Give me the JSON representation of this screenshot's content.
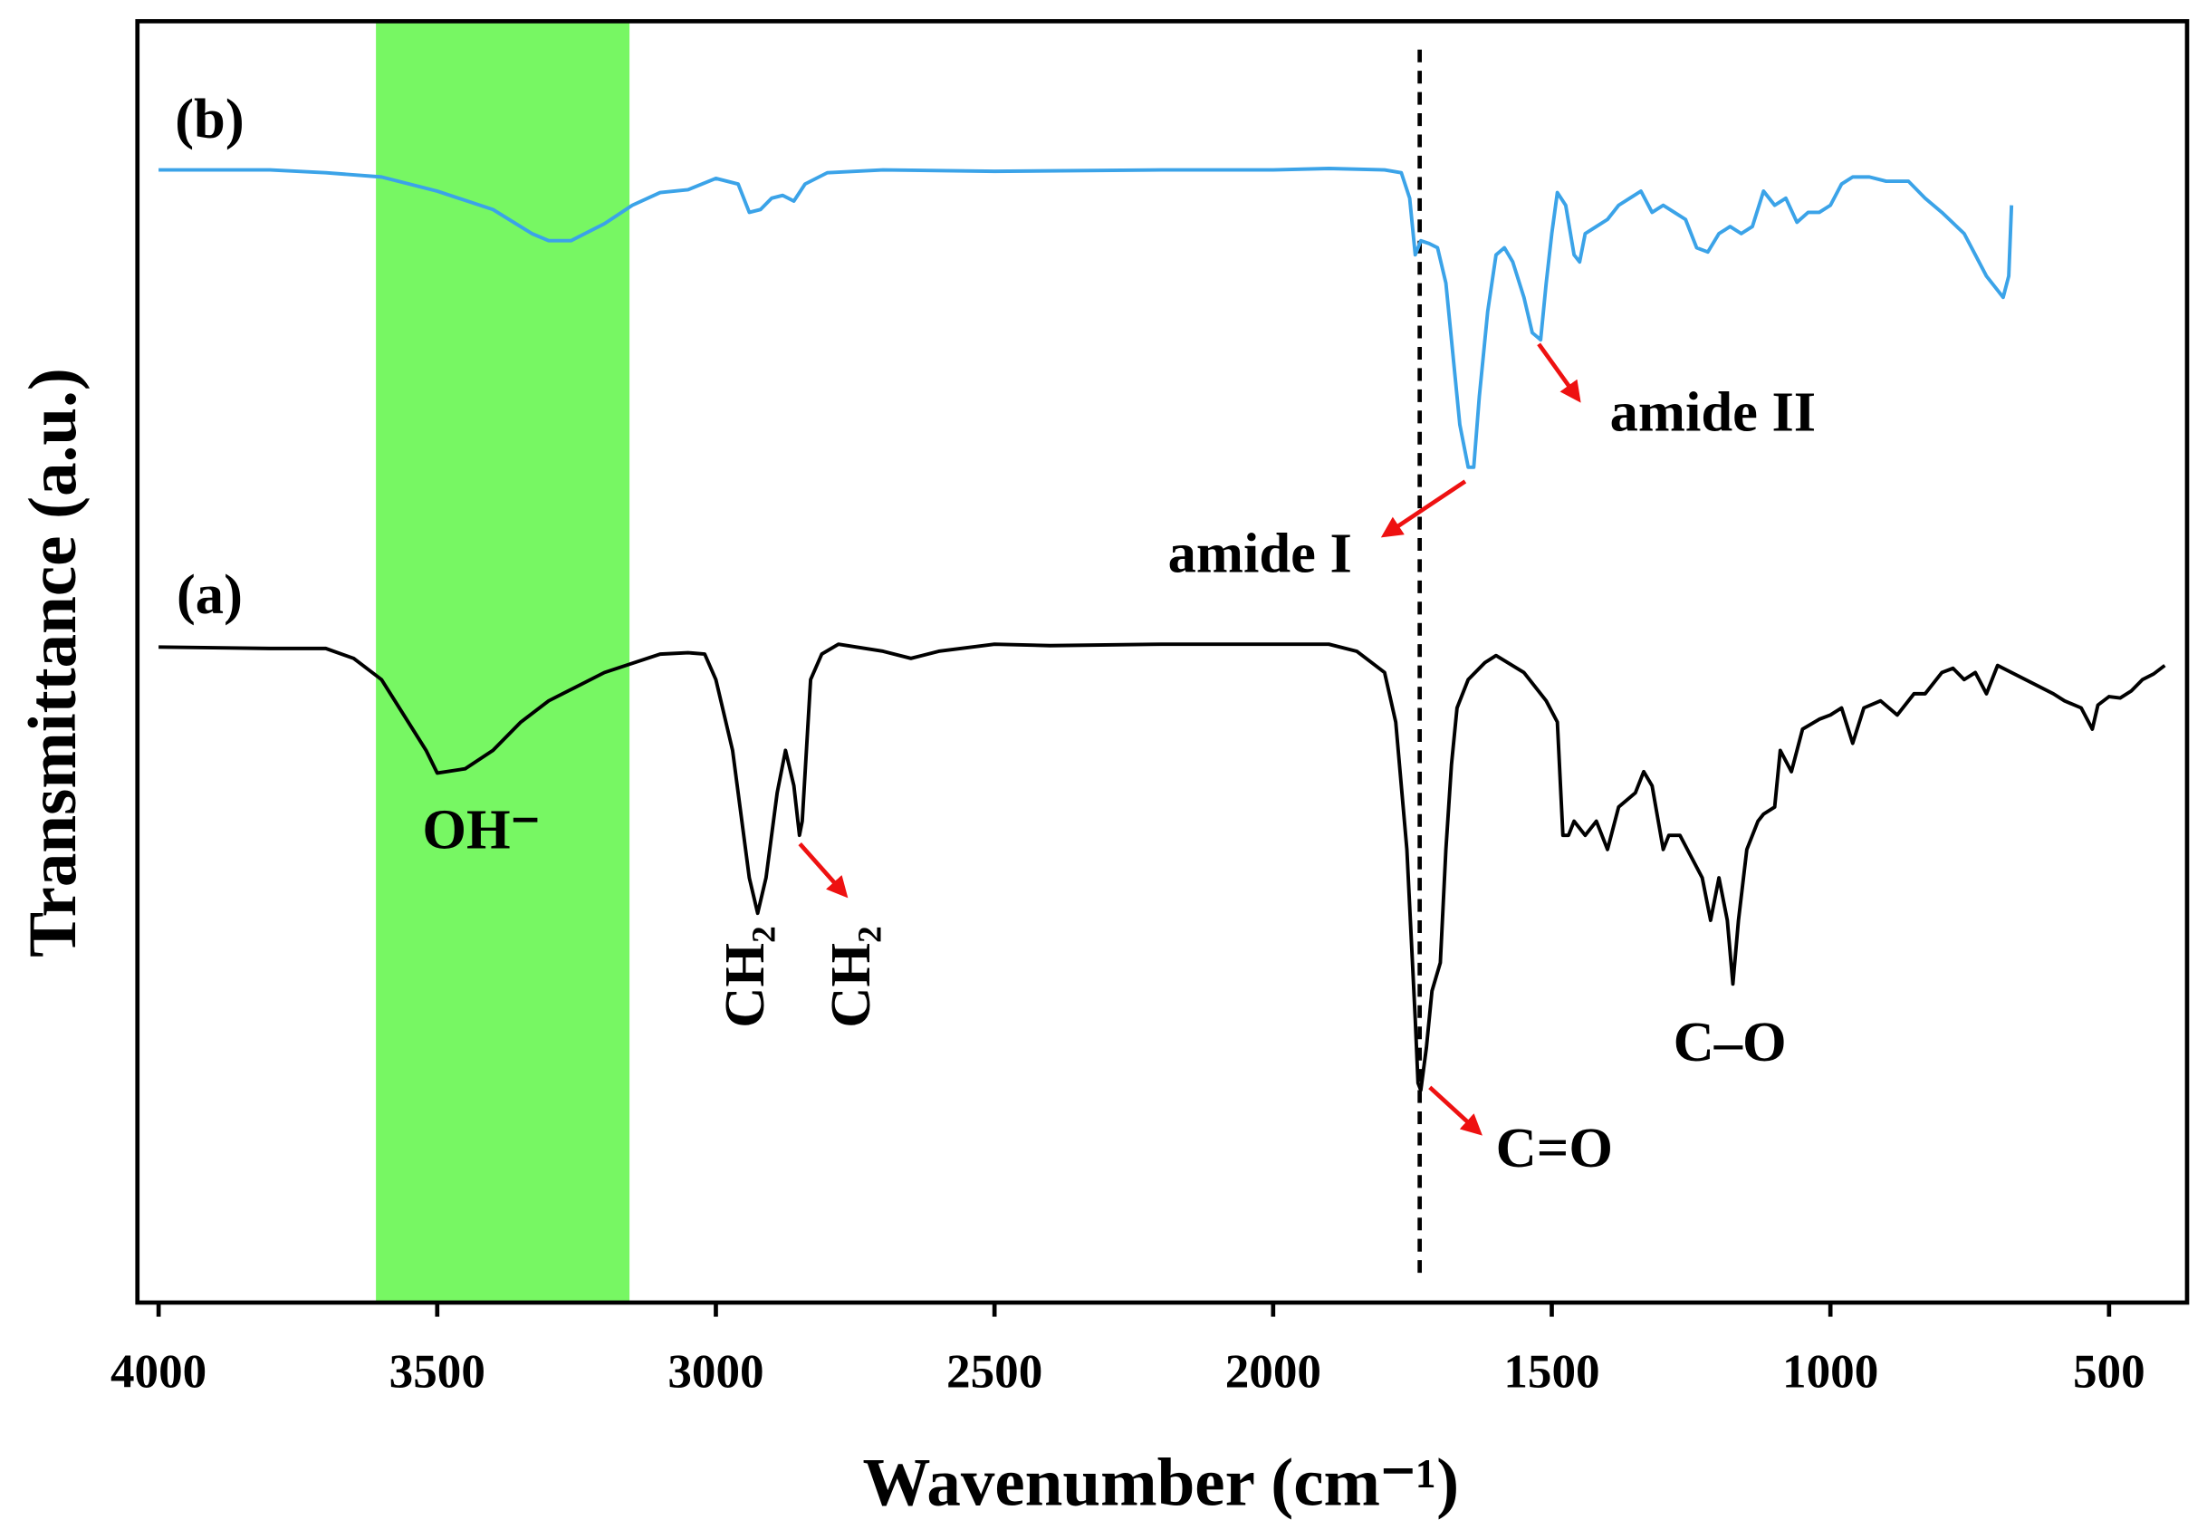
{
  "chart_data": {
    "type": "line",
    "xlabel": "Wavenumber (cm⁻¹)",
    "ylabel": "Transmittance (a.u.)",
    "xlim": [
      4038,
      360
    ],
    "ylim": [
      0,
      90.5
    ],
    "xticks": [
      4000,
      3500,
      3000,
      2500,
      2000,
      1500,
      1000,
      500
    ],
    "shaded_region": {
      "x": [
        3610,
        3155
      ],
      "color": "#77f763"
    },
    "reference_line": {
      "x": 1737,
      "color": "#000000"
    },
    "annotations": [
      "OH⁻",
      "CH₂",
      "CH₂",
      "C=O",
      "C–O",
      "amide I",
      "amide II"
    ],
    "series": [
      {
        "name": "(a)",
        "color": "#000000",
        "x": [
          4000,
          3800,
          3700,
          3650,
          3600,
          3560,
          3520,
          3500,
          3450,
          3400,
          3350,
          3300,
          3200,
          3100,
          3050,
          3020,
          3000,
          2970,
          2940,
          2925,
          2910,
          2890,
          2875,
          2860,
          2850,
          2845,
          2830,
          2810,
          2780,
          2700,
          2650,
          2600,
          2500,
          2400,
          2200,
          2000,
          1900,
          1850,
          1800,
          1780,
          1760,
          1745,
          1740,
          1735,
          1725,
          1715,
          1700,
          1690,
          1680,
          1670,
          1650,
          1620,
          1600,
          1550,
          1510,
          1490,
          1480,
          1470,
          1460,
          1440,
          1420,
          1400,
          1380,
          1350,
          1335,
          1320,
          1300,
          1290,
          1270,
          1250,
          1230,
          1215,
          1200,
          1185,
          1175,
          1165,
          1150,
          1130,
          1120,
          1100,
          1090,
          1070,
          1050,
          1020,
          1000,
          980,
          960,
          940,
          910,
          880,
          850,
          830,
          800,
          780,
          760,
          740,
          720,
          700,
          650,
          600,
          580,
          550,
          530,
          520,
          500,
          480,
          460,
          440,
          420,
          400
        ],
        "values": [
          46.3,
          46.2,
          46.2,
          45.5,
          44,
          41.5,
          39,
          37.4,
          37.7,
          39,
          41,
          42.5,
          44.5,
          45.8,
          45.9,
          45.8,
          44,
          39,
          30,
          27.5,
          30,
          36,
          39,
          36.5,
          33,
          34,
          44,
          45.8,
          46.5,
          46,
          45.5,
          46,
          46.5,
          46.4,
          46.5,
          46.5,
          46.5,
          46,
          44.5,
          41,
          32,
          20,
          15.5,
          15,
          18,
          22,
          24,
          32,
          38,
          42,
          44,
          45.2,
          45.7,
          44.5,
          42.5,
          41,
          33,
          33,
          34,
          33,
          34,
          32,
          35,
          36,
          37.5,
          36.5,
          32,
          33,
          33,
          31.5,
          30,
          27,
          30,
          27,
          22.5,
          27,
          32,
          34,
          34.5,
          35,
          39,
          37.5,
          40.5,
          41.2,
          41.5,
          42,
          39.5,
          42,
          42.5,
          41.5,
          43,
          43,
          44.5,
          44.8,
          44,
          44.5,
          43,
          45,
          44,
          43,
          42.5,
          42,
          40.5,
          42.2,
          42.8,
          42.7,
          43.2,
          44,
          44.4,
          45
        ]
      },
      {
        "name": "(b)",
        "color": "#3ba3e8",
        "x": [
          4000,
          3800,
          3700,
          3600,
          3500,
          3400,
          3330,
          3300,
          3260,
          3200,
          3150,
          3100,
          3050,
          3000,
          2960,
          2940,
          2920,
          2900,
          2880,
          2860,
          2840,
          2800,
          2700,
          2500,
          2200,
          2000,
          1900,
          1800,
          1770,
          1755,
          1745,
          1735,
          1720,
          1705,
          1690,
          1680,
          1665,
          1650,
          1640,
          1630,
          1615,
          1600,
          1585,
          1570,
          1550,
          1535,
          1520,
          1510,
          1500,
          1490,
          1475,
          1460,
          1450,
          1440,
          1420,
          1400,
          1380,
          1360,
          1340,
          1320,
          1300,
          1280,
          1260,
          1240,
          1220,
          1200,
          1180,
          1160,
          1140,
          1120,
          1100,
          1080,
          1060,
          1040,
          1020,
          1000,
          980,
          960,
          930,
          900,
          860,
          830,
          800,
          760,
          740,
          720,
          700,
          690,
          680,
          675
        ],
        "values": [
          80,
          80,
          79.8,
          79.5,
          78.5,
          77.2,
          75.5,
          75,
          75,
          76.2,
          77.5,
          78.4,
          78.6,
          79.4,
          79,
          77,
          77.2,
          78,
          78.2,
          77.8,
          79,
          79.8,
          80,
          79.9,
          80,
          80,
          80.1,
          80,
          79.8,
          78,
          74,
          75,
          74.8,
          74.5,
          72,
          68,
          62,
          59,
          59,
          64,
          70,
          74,
          74.5,
          73.5,
          71,
          68.5,
          68,
          72,
          75.5,
          78.4,
          77.5,
          74,
          73.5,
          75.5,
          76,
          76.5,
          77.5,
          78,
          78.5,
          77,
          77.5,
          77,
          76.5,
          74.5,
          74.2,
          75.5,
          76,
          75.5,
          76,
          78.5,
          77.5,
          78,
          76.3,
          77,
          77,
          77.5,
          79,
          79.5,
          79.5,
          79.2,
          79.2,
          78,
          77,
          75.5,
          74,
          72.5,
          71.5,
          71,
          72.5,
          77.5
        ]
      }
    ]
  }
}
